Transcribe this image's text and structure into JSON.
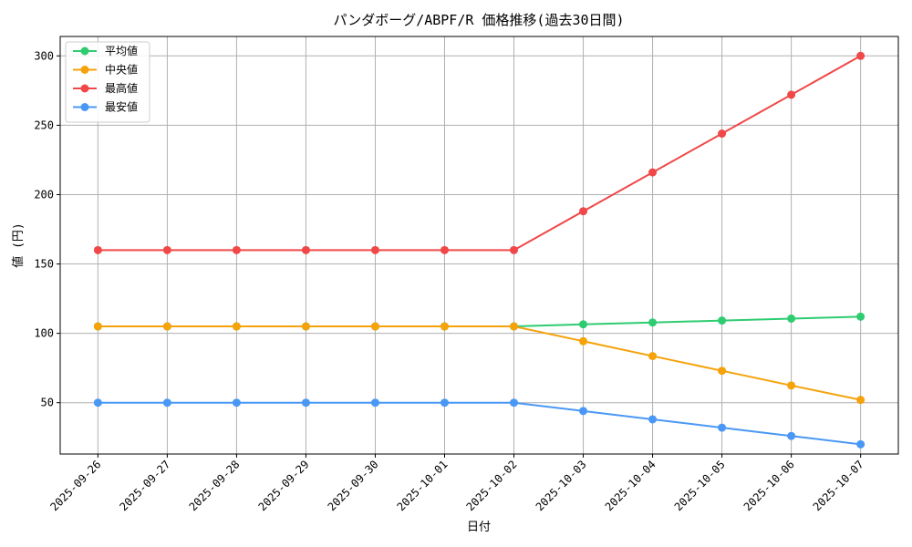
{
  "chart_data": {
    "type": "line",
    "title": "パンダボーグ/ABPF/R 価格推移(過去30日間)",
    "xlabel": "日付",
    "ylabel": "値 (円)",
    "grid": true,
    "legend_position": "top-left",
    "ylim": [
      13,
      314
    ],
    "yticks": [
      50,
      100,
      150,
      200,
      250,
      300
    ],
    "categories": [
      "2025-09-26",
      "2025-09-27",
      "2025-09-28",
      "2025-09-29",
      "2025-09-30",
      "2025-10-01",
      "2025-10-02",
      "2025-10-03",
      "2025-10-04",
      "2025-10-05",
      "2025-10-06",
      "2025-10-07"
    ],
    "series": [
      {
        "name": "平均値",
        "color": "#2ecc71",
        "values": [
          105,
          105,
          105,
          105,
          105,
          105,
          105,
          106.5,
          107.8,
          109.2,
          110.6,
          112
        ]
      },
      {
        "name": "中央値",
        "color": "#f5a20b",
        "values": [
          105,
          105,
          105,
          105,
          105,
          105,
          105,
          94.3,
          83.6,
          73,
          62.4,
          52
        ]
      },
      {
        "name": "最高値",
        "color": "#f04848",
        "values": [
          160,
          160,
          160,
          160,
          160,
          160,
          160,
          188,
          216,
          244,
          272,
          300
        ]
      },
      {
        "name": "最安値",
        "color": "#4a98f5",
        "values": [
          50,
          50,
          50,
          50,
          50,
          50,
          50,
          44,
          38,
          32,
          26,
          20
        ]
      }
    ]
  }
}
